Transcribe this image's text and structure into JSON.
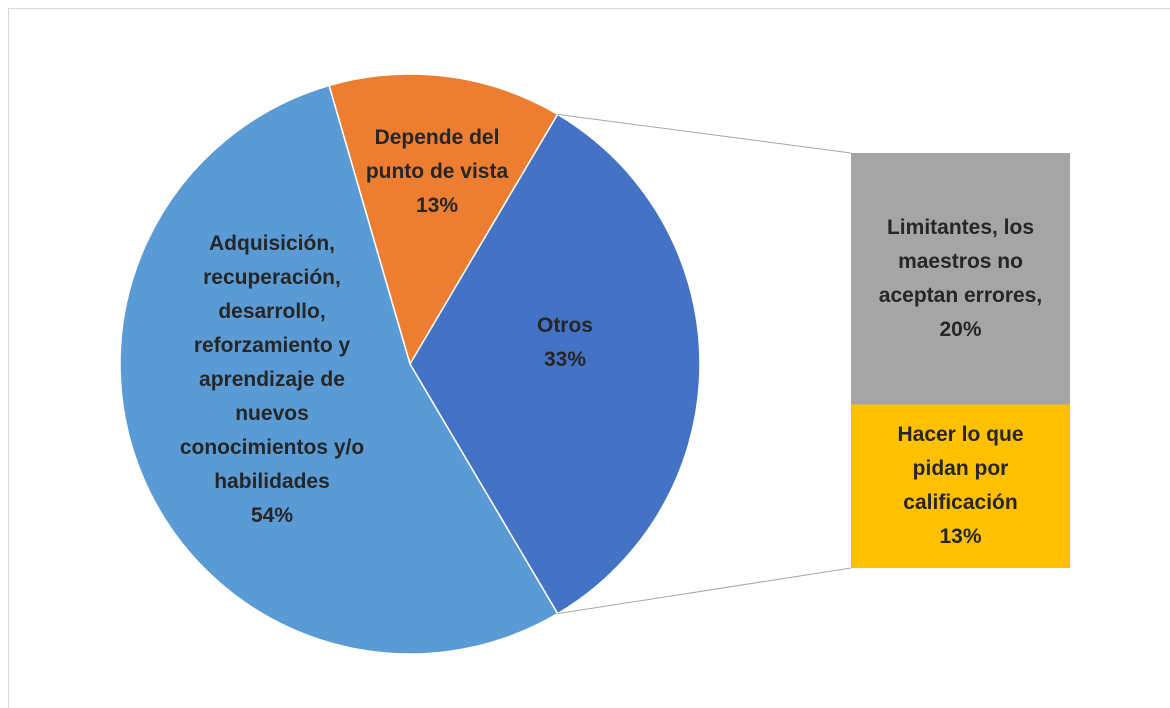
{
  "chart_data": {
    "type": "bar-of-pie",
    "categories": [
      "Depende del punto de vista",
      "Otros",
      "Adquisición, recuperación, desarrollo, reforzamiento y aprendizaje de nuevos conocimientos y/o habilidades"
    ],
    "values": [
      13,
      33,
      54
    ],
    "value_labels": [
      "13%",
      "33%",
      "54%"
    ],
    "colors": [
      "#ED7D31",
      "#4472C4",
      "#5B9BD5"
    ],
    "secondary": {
      "categories": [
        "Limitantes, los maestros no aceptan errores,",
        "Hacer lo que pidan por calificación"
      ],
      "values": [
        20,
        13
      ],
      "value_labels": [
        "20%",
        "13%"
      ],
      "colors": [
        "#A5A5A5",
        "#FFC000"
      ]
    }
  }
}
